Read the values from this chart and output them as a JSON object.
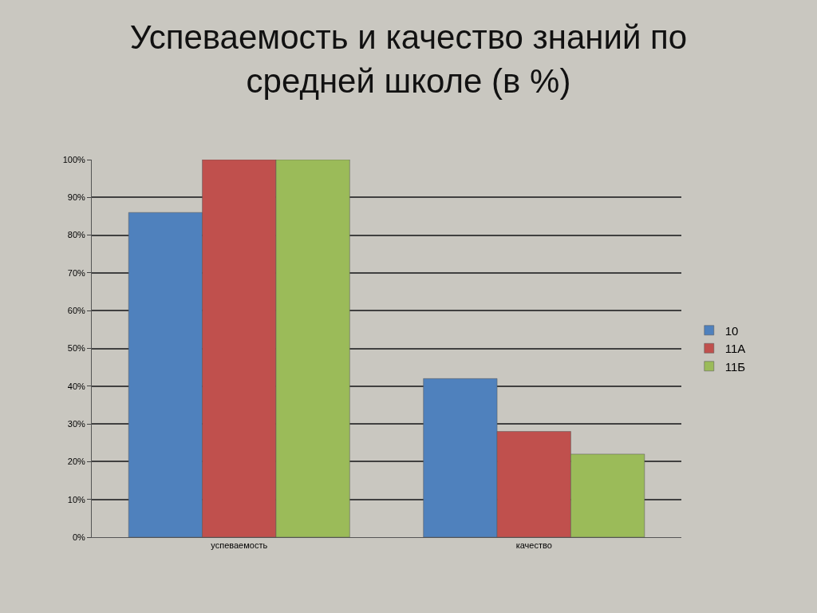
{
  "chart_data": {
    "type": "bar",
    "title": "Успеваемость и качество знаний по средней школе (в %)",
    "categories": [
      "успеваемость",
      "качество"
    ],
    "series": [
      {
        "name": "10",
        "color": "#4f81bd",
        "values": [
          86,
          42
        ]
      },
      {
        "name": "11А",
        "color": "#c0504d",
        "values": [
          100,
          28
        ]
      },
      {
        "name": "11Б",
        "color": "#9bbb59",
        "values": [
          100,
          22
        ]
      }
    ],
    "ylim": [
      0,
      100
    ],
    "yticks": [
      {
        "value": 0,
        "label": "0%"
      },
      {
        "value": 10,
        "label": "10%"
      },
      {
        "value": 20,
        "label": "20%"
      },
      {
        "value": 30,
        "label": "30%"
      },
      {
        "value": 40,
        "label": "40%"
      },
      {
        "value": 50,
        "label": "50%"
      },
      {
        "value": 60,
        "label": "60%"
      },
      {
        "value": 70,
        "label": "70%"
      },
      {
        "value": 80,
        "label": "80%"
      },
      {
        "value": 90,
        "label": "90%"
      },
      {
        "value": 100,
        "label": "100%"
      }
    ],
    "grid": "y",
    "legend": "right"
  }
}
